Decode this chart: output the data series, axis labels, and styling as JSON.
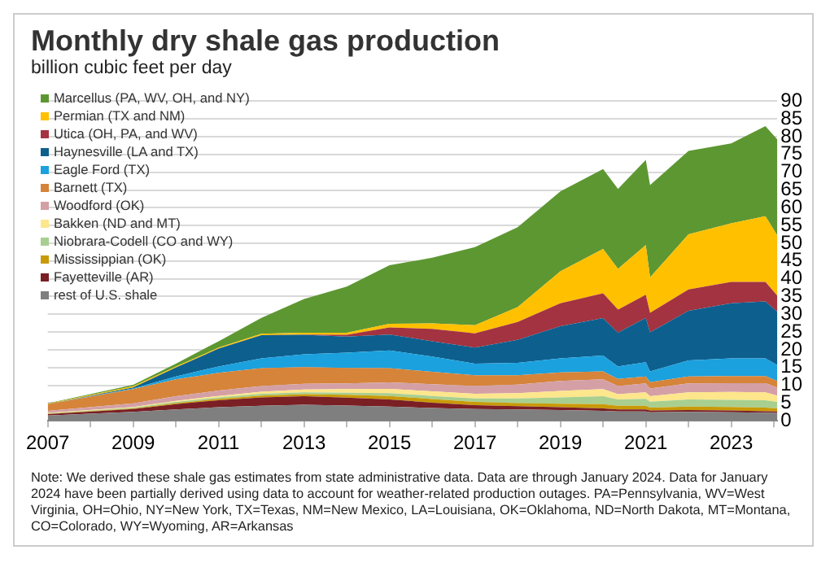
{
  "chart_data": {
    "type": "area",
    "stacked": true,
    "title": "Monthly dry shale gas production",
    "subtitle": "billion cubic feet per day",
    "x": [
      2007,
      2009,
      2010,
      2011,
      2012,
      2013,
      2014,
      2015,
      2016,
      2017,
      2018,
      2019,
      2020,
      2020.35,
      2021,
      2021.1,
      2022,
      2023,
      2023.8,
      2024.08
    ],
    "series": [
      {
        "name": "rest of U.S. shale",
        "color": "#7f7f7f",
        "values": [
          1.5,
          2.5,
          3.2,
          3.8,
          4.2,
          4.5,
          4.3,
          4.0,
          3.6,
          3.3,
          3.2,
          3.0,
          2.8,
          2.6,
          2.6,
          2.4,
          2.5,
          2.4,
          2.3,
          2.2
        ]
      },
      {
        "name": "Fayetteville (AR)",
        "color": "#7a1f24",
        "values": [
          0.4,
          0.8,
          1.5,
          2.0,
          2.4,
          2.4,
          2.2,
          2.0,
          1.5,
          1.1,
          0.9,
          0.8,
          0.7,
          0.6,
          0.6,
          0.5,
          0.5,
          0.5,
          0.4,
          0.4
        ]
      },
      {
        "name": "Mississippian (OK)",
        "color": "#c99a08",
        "values": [
          0.1,
          0.2,
          0.3,
          0.4,
          0.5,
          0.6,
          0.8,
          1.0,
          1.0,
          0.9,
          0.9,
          1.0,
          1.2,
          1.0,
          1.0,
          0.8,
          1.0,
          1.0,
          1.0,
          0.9
        ]
      },
      {
        "name": "Niobrara-Codell (CO and WY)",
        "color": "#a8cf8f",
        "values": [
          0.1,
          0.2,
          0.3,
          0.4,
          0.5,
          0.5,
          0.6,
          0.8,
          0.9,
          1.0,
          1.3,
          1.8,
          2.2,
          1.8,
          2.0,
          1.7,
          2.0,
          2.0,
          2.1,
          1.8
        ]
      },
      {
        "name": "Bakken (ND and MT)",
        "color": "#fde68b",
        "values": [
          0.1,
          0.2,
          0.3,
          0.4,
          0.6,
          0.8,
          1.0,
          1.2,
          1.3,
          1.3,
          1.5,
          1.8,
          2.0,
          1.5,
          1.8,
          1.5,
          2.0,
          2.2,
          2.2,
          1.8
        ]
      },
      {
        "name": "Woodford (OK)",
        "color": "#d4a0a6",
        "values": [
          0.6,
          1.0,
          1.3,
          1.5,
          1.6,
          1.6,
          1.6,
          1.8,
          2.0,
          2.2,
          2.4,
          2.8,
          2.8,
          2.3,
          2.5,
          2.2,
          2.5,
          2.5,
          2.6,
          2.3
        ]
      },
      {
        "name": "Barnett (TX)",
        "color": "#d5843a",
        "values": [
          1.9,
          4.0,
          4.8,
          5.0,
          5.0,
          4.7,
          4.4,
          4.0,
          3.5,
          3.0,
          2.6,
          2.4,
          2.2,
          2.0,
          2.0,
          1.8,
          2.0,
          2.0,
          2.0,
          1.8
        ]
      },
      {
        "name": "Eagle Ford (TX)",
        "color": "#1ba1de",
        "values": [
          0,
          0.2,
          0.8,
          1.8,
          2.8,
          3.6,
          4.3,
          5.0,
          4.3,
          3.3,
          3.5,
          4.0,
          4.5,
          3.5,
          4.0,
          3.0,
          4.5,
          5.0,
          5.0,
          4.5
        ]
      },
      {
        "name": "Haynesville (LA and TX)",
        "color": "#0d5f8e",
        "values": [
          0,
          0.3,
          2.5,
          5.0,
          6.5,
          5.5,
          4.5,
          4.5,
          4.3,
          4.5,
          6.5,
          9.0,
          10.5,
          9.5,
          12.5,
          11,
          14,
          15.5,
          16,
          15
        ]
      },
      {
        "name": "Utica (OH, PA, and WV)",
        "color": "#a33340",
        "values": [
          0,
          0,
          0,
          0,
          0,
          0.1,
          0.5,
          2.0,
          3.5,
          4.0,
          5.0,
          6.5,
          7.0,
          6.5,
          6.5,
          5.5,
          6.0,
          6.0,
          5.5,
          4.5
        ]
      },
      {
        "name": "Permian (TX and NM)",
        "color": "#ffc000",
        "values": [
          0.1,
          0.3,
          0.3,
          0.3,
          0.4,
          0.5,
          0.6,
          1.0,
          1.5,
          2.3,
          4.2,
          9.0,
          12.5,
          11.5,
          14,
          10,
          15.5,
          16.5,
          18.5,
          17
        ]
      },
      {
        "name": "Marcellus (PA, WV, OH, and NY)",
        "color": "#5d9732",
        "values": [
          0.1,
          0.4,
          0.8,
          1.8,
          4.5,
          9.5,
          13,
          16.5,
          18.5,
          22,
          22.5,
          22.5,
          22.5,
          22.5,
          24,
          26,
          23.5,
          22.5,
          25.4,
          27
        ]
      }
    ],
    "xlim": [
      2007,
      2024.08
    ],
    "xticks": [
      2007,
      {
        "value": 2008,
        "label": null
      },
      2009,
      {
        "value": 2010,
        "label": null
      },
      2011,
      {
        "value": 2012,
        "label": null
      },
      2013,
      {
        "value": 2014,
        "label": null
      },
      2015,
      {
        "value": 2016,
        "label": null
      },
      2017,
      {
        "value": 2018,
        "label": null
      },
      2019,
      {
        "value": 2020,
        "label": null
      },
      2021,
      {
        "value": 2022,
        "label": null
      },
      2023,
      {
        "value": 2024,
        "label": null
      }
    ],
    "ylim": [
      0,
      90
    ],
    "yticks": [
      0,
      5,
      10,
      15,
      20,
      25,
      30,
      35,
      40,
      45,
      50,
      55,
      60,
      65,
      70,
      75,
      80,
      85,
      90
    ],
    "grid": "y",
    "legend": "top left",
    "annotations": [
      "Note: We derived these shale gas estimates from state administrative data. Data are through January 2024. Data for January 2024 have been partially derived using data to account for weather-related production outages. PA=Pennsylvania, WV=West Virginia, OH=Ohio, NY=New York, TX=Texas, NM=New Mexico, LA=Louisiana, OK=Oklahoma, ND=North Dakota, MT=Montana, CO=Colorado, WY=Wyoming, AR=Arkansas"
    ]
  }
}
